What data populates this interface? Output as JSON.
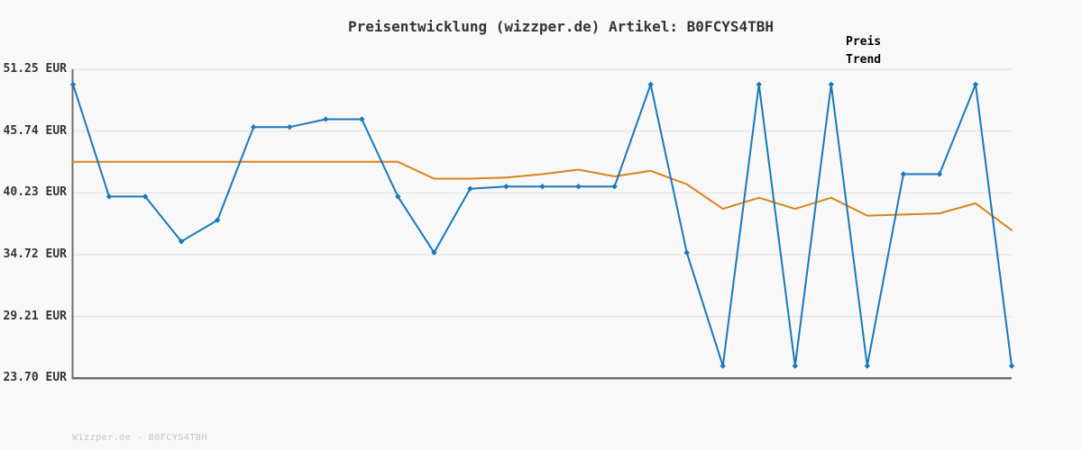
{
  "title": "Preisentwicklung (wizzper.de) Artikel: B0FCYS4TBH",
  "watermark": "Wizzper.de - B0FCYS4TBH",
  "legend": {
    "items": [
      {
        "label": "Preis",
        "color": "#1878be"
      },
      {
        "label": "Trend",
        "color": "#d9831a"
      }
    ]
  },
  "y_axis": {
    "unit": "EUR",
    "tick_labels": [
      "51.25 EUR",
      "45.74 EUR",
      "40.23 EUR",
      "34.72 EUR",
      "29.21 EUR",
      "23.70 EUR"
    ]
  },
  "colors": {
    "background": "#f8f8f8",
    "grid": "#e6e6e6",
    "axis": "#6e6e6e",
    "text": "#333333",
    "preis": "#1878be",
    "trend": "#d9831a",
    "watermark": "#c4c4c4"
  },
  "chart_data": {
    "type": "line",
    "title": "Preisentwicklung (wizzper.de) Artikel: B0FCYS4TBH",
    "xlabel": "",
    "ylabel": "EUR",
    "ylim": [
      23.7,
      51.25
    ],
    "yticks": [
      51.25,
      45.74,
      40.23,
      34.72,
      29.21,
      23.7
    ],
    "ytick_labels": [
      "51.25 EUR",
      "45.74 EUR",
      "40.23 EUR",
      "34.72 EUR",
      "29.21 EUR",
      "23.70 EUR"
    ],
    "grid": "horizontal",
    "legend_position": "top-right",
    "series": [
      {
        "name": "Trend",
        "color": "#d9831a",
        "markers": false,
        "values": [
          43.0,
          43.0,
          43.0,
          43.0,
          43.0,
          43.0,
          43.0,
          43.0,
          43.0,
          43.0,
          41.5,
          41.5,
          41.6,
          41.9,
          42.3,
          41.7,
          42.2,
          41.0,
          38.8,
          39.8,
          38.8,
          39.8,
          38.2,
          38.3,
          38.4,
          39.3,
          36.9
        ]
      },
      {
        "name": "Preis",
        "color": "#1878be",
        "markers": true,
        "values": [
          49.9,
          39.9,
          39.9,
          35.9,
          37.8,
          46.1,
          46.1,
          46.8,
          46.8,
          39.9,
          34.9,
          40.6,
          40.8,
          40.8,
          40.8,
          40.8,
          49.9,
          34.9,
          24.8,
          49.9,
          24.8,
          49.9,
          24.8,
          41.9,
          41.9,
          49.9,
          24.8
        ]
      }
    ]
  }
}
